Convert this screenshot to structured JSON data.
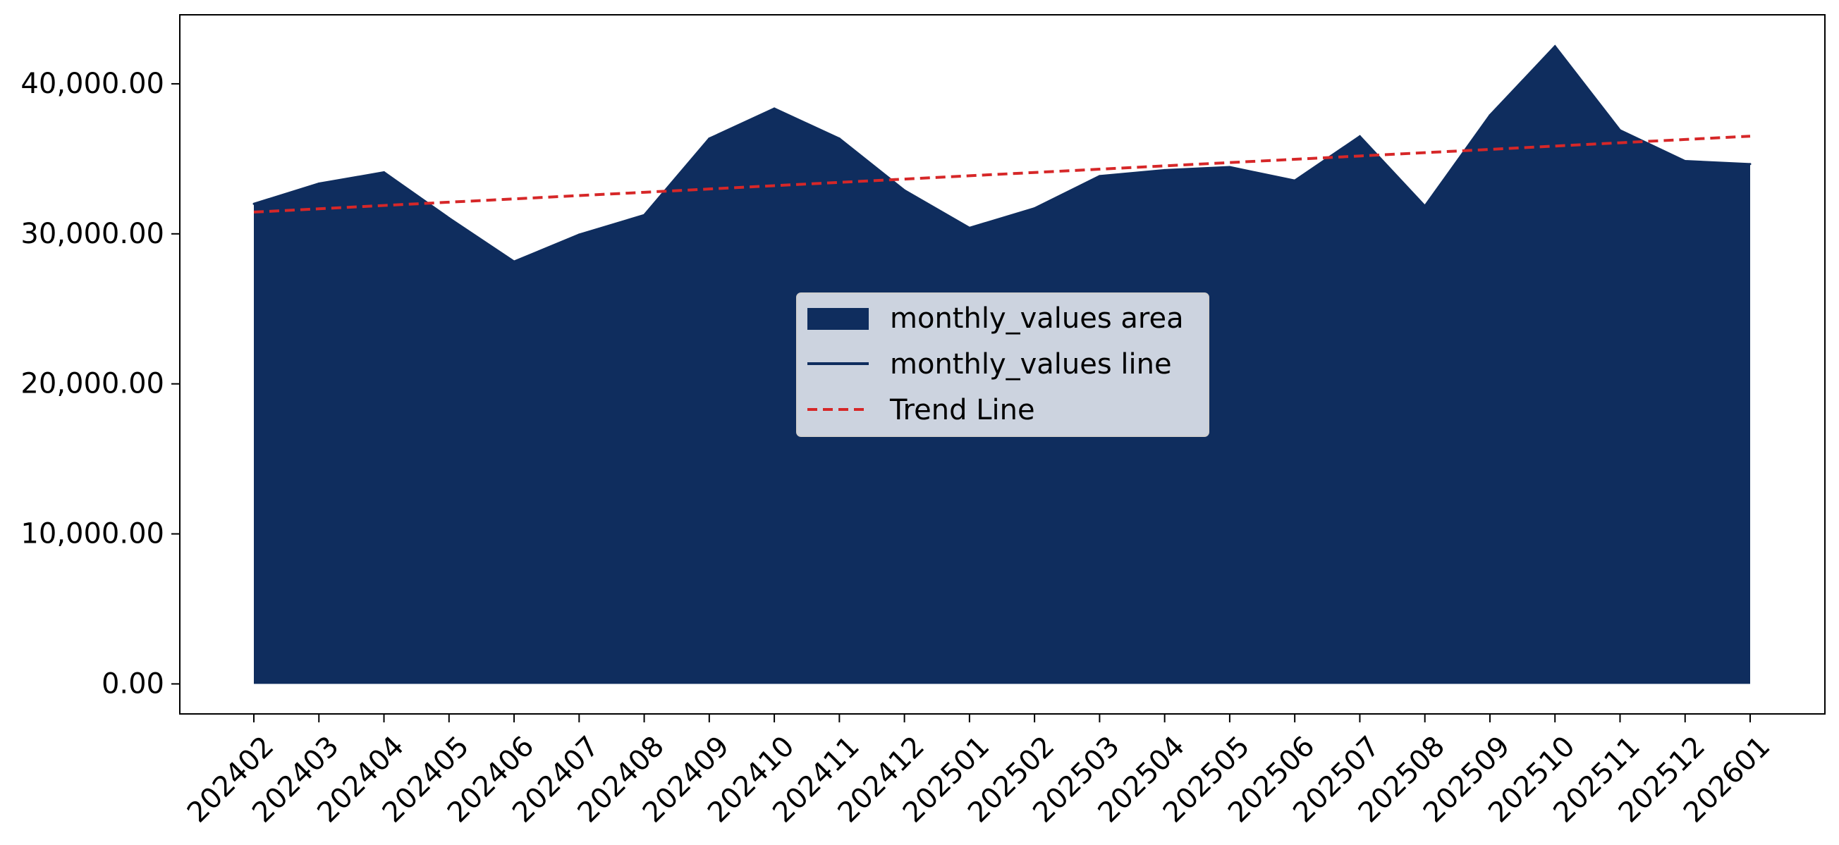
{
  "chart_data": {
    "type": "area",
    "title": "",
    "xlabel": "",
    "ylabel": "",
    "categories": [
      "202402",
      "202403",
      "202404",
      "202405",
      "202406",
      "202407",
      "202408",
      "202409",
      "202410",
      "202411",
      "202412",
      "202501",
      "202502",
      "202503",
      "202504",
      "202505",
      "202506",
      "202507",
      "202508",
      "202509",
      "202510",
      "202511",
      "202512",
      "202601"
    ],
    "series": [
      {
        "name": "monthly_values area",
        "kind": "area",
        "values": [
          32000,
          33350,
          34100,
          31050,
          28150,
          29950,
          31250,
          36350,
          38350,
          36350,
          32900,
          30400,
          31700,
          33850,
          34250,
          34450,
          33550,
          36500,
          31850,
          37900,
          42500,
          36900,
          34850,
          34650
        ]
      },
      {
        "name": "monthly_values line",
        "kind": "line",
        "values": [
          32000,
          33350,
          34100,
          31050,
          28150,
          29950,
          31250,
          36350,
          38350,
          36350,
          32900,
          30400,
          31700,
          33850,
          34250,
          34450,
          33550,
          36500,
          31850,
          37900,
          42500,
          36900,
          34850,
          34650
        ]
      },
      {
        "name": "Trend Line",
        "kind": "trend",
        "values": [
          31450,
          31670,
          31890,
          32110,
          32330,
          32550,
          32770,
          32990,
          33210,
          33430,
          33650,
          33870,
          34090,
          34310,
          34530,
          34750,
          34970,
          35190,
          35410,
          35630,
          35850,
          36070,
          36290,
          36510
        ]
      }
    ],
    "yticks": [
      0,
      10000,
      20000,
      30000,
      40000
    ],
    "ytick_labels": [
      "0.00",
      "10,000.00",
      "20,000.00",
      "30,000.00",
      "40,000.00"
    ],
    "ylim": [
      -2000,
      44600
    ],
    "grid": false,
    "legend_position": "center",
    "colors": {
      "area": "#0f2d5e",
      "line": "#0f2d5e",
      "trend": "#d62728",
      "legend_bg": "#ccd3df"
    }
  }
}
